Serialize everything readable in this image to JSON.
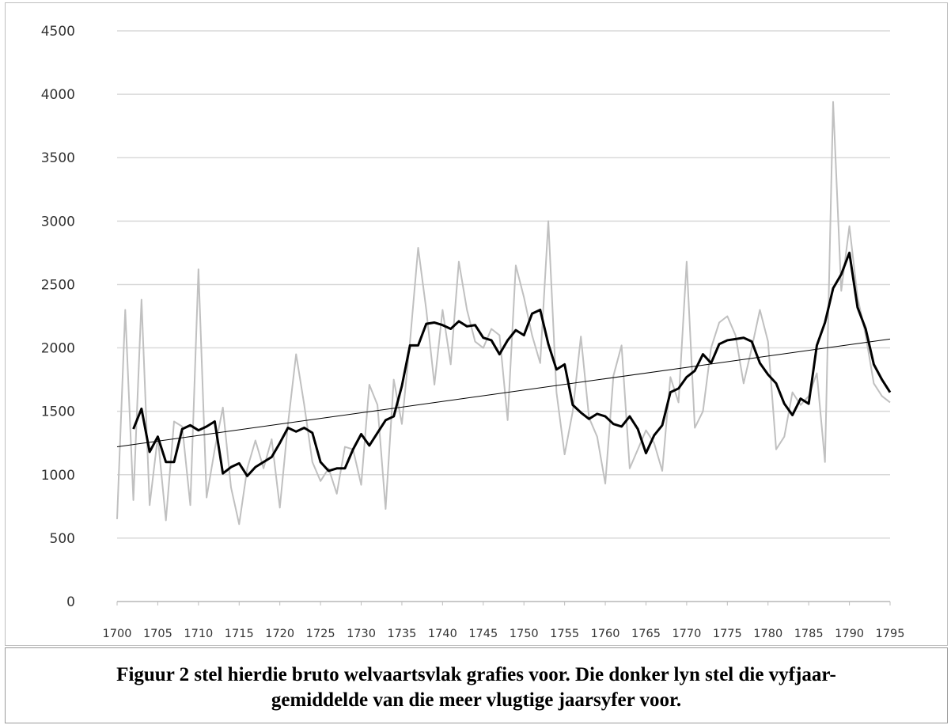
{
  "chart_data": {
    "type": "line",
    "xlim": [
      1700,
      1795
    ],
    "xticks": [
      1700,
      1705,
      1710,
      1715,
      1720,
      1725,
      1730,
      1735,
      1740,
      1745,
      1750,
      1755,
      1760,
      1765,
      1770,
      1775,
      1780,
      1785,
      1790,
      1795
    ],
    "ylim": [
      0,
      4500
    ],
    "yticks": [
      0,
      500,
      1000,
      1500,
      2000,
      2500,
      3000,
      3500,
      4000,
      4500
    ],
    "grid": true,
    "x": [
      1700,
      1701,
      1702,
      1703,
      1704,
      1705,
      1706,
      1707,
      1708,
      1709,
      1710,
      1711,
      1712,
      1713,
      1714,
      1715,
      1716,
      1717,
      1718,
      1719,
      1720,
      1721,
      1722,
      1723,
      1724,
      1725,
      1726,
      1727,
      1728,
      1729,
      1730,
      1731,
      1732,
      1733,
      1734,
      1735,
      1736,
      1737,
      1738,
      1739,
      1740,
      1741,
      1742,
      1743,
      1744,
      1745,
      1746,
      1747,
      1748,
      1749,
      1750,
      1751,
      1752,
      1753,
      1754,
      1755,
      1756,
      1757,
      1758,
      1759,
      1760,
      1761,
      1762,
      1763,
      1764,
      1765,
      1766,
      1767,
      1768,
      1769,
      1770,
      1771,
      1772,
      1773,
      1774,
      1775,
      1776,
      1777,
      1778,
      1779,
      1780,
      1781,
      1782,
      1783,
      1784,
      1785,
      1786,
      1787,
      1788,
      1789,
      1790,
      1791,
      1792,
      1793,
      1794,
      1795
    ],
    "series": [
      {
        "color": "#c0c0c0",
        "width": 2,
        "values": [
          650,
          2300,
          800,
          2380,
          760,
          1300,
          640,
          1420,
          1380,
          760,
          2620,
          820,
          1200,
          1530,
          900,
          610,
          1050,
          1270,
          1050,
          1280,
          740,
          1400,
          1950,
          1550,
          1100,
          950,
          1050,
          850,
          1220,
          1200,
          920,
          1710,
          1550,
          730,
          1750,
          1400,
          2050,
          2790,
          2300,
          1710,
          2300,
          1870,
          2680,
          2300,
          2050,
          2000,
          2150,
          2100,
          1430,
          2650,
          2400,
          2100,
          1880,
          3000,
          1650,
          1160,
          1500,
          2090,
          1450,
          1300,
          930,
          1780,
          2020,
          1050,
          1200,
          1350,
          1250,
          1030,
          1770,
          1570,
          2680,
          1370,
          1500,
          2000,
          2200,
          2250,
          2100,
          1720,
          2000,
          2300,
          2050,
          1200,
          1300,
          1650,
          1550,
          1620,
          1800,
          1100,
          3940,
          2450,
          2960,
          2400,
          2100,
          1720,
          1620,
          1570
        ]
      },
      {
        "color": "#000000",
        "width": 3,
        "values": [
          null,
          null,
          1360,
          1520,
          1180,
          1300,
          1100,
          1100,
          1360,
          1390,
          1350,
          1380,
          1420,
          1010,
          1060,
          1090,
          990,
          1060,
          1100,
          1140,
          1250,
          1370,
          1340,
          1370,
          1330,
          1100,
          1030,
          1050,
          1050,
          1200,
          1320,
          1230,
          1330,
          1430,
          1460,
          1700,
          2020,
          2020,
          2190,
          2200,
          2180,
          2150,
          2210,
          2170,
          2180,
          2080,
          2060,
          1950,
          2060,
          2140,
          2100,
          2270,
          2300,
          2030,
          1830,
          1870,
          1550,
          1490,
          1440,
          1480,
          1460,
          1400,
          1380,
          1460,
          1360,
          1170,
          1310,
          1390,
          1650,
          1680,
          1770,
          1820,
          1950,
          1880,
          2030,
          2060,
          2070,
          2080,
          2050,
          1880,
          1790,
          1720,
          1560,
          1470,
          1600,
          1560,
          2020,
          2200,
          2470,
          2580,
          2750,
          2320,
          2150,
          1870,
          1750,
          1650
        ]
      },
      {
        "color": "#000000",
        "width": 1,
        "x": [
          1700,
          1795
        ],
        "values": [
          1220,
          2070
        ]
      }
    ]
  },
  "caption": {
    "lines": [
      "Figuur 2 stel hierdie bruto welvaartsvlak grafies voor. Die donker lyn stel die vyfjaar-",
      "gemiddelde van die meer vlugtige jaarsyfer voor."
    ]
  }
}
